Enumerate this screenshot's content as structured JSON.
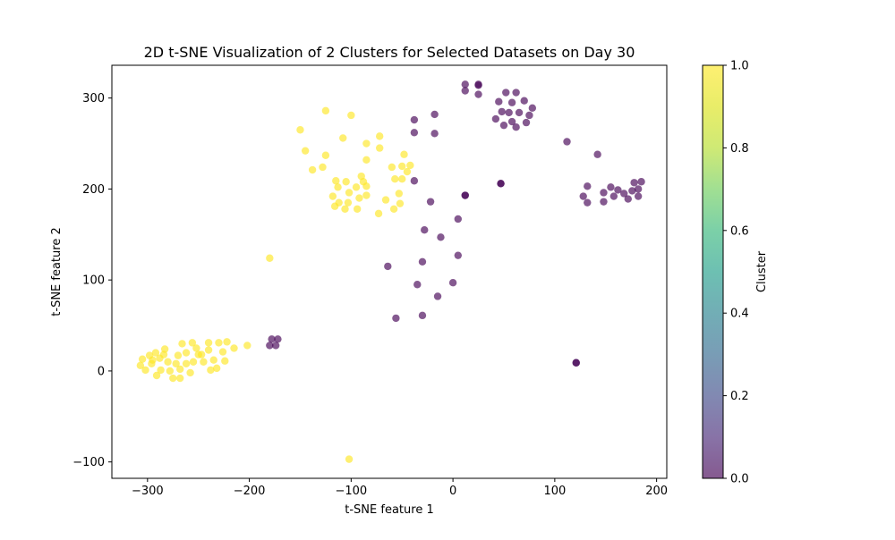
{
  "chart_data": {
    "type": "scatter",
    "title": "2D t-SNE Visualization of 2 Clusters for Selected Datasets on Day 30",
    "xlabel": "t-SNE feature 1",
    "ylabel": "t-SNE feature 2",
    "xlim": [
      -335,
      210
    ],
    "ylim": [
      -118,
      336
    ],
    "xticks": [
      -300,
      -200,
      -100,
      0,
      100,
      200
    ],
    "yticks": [
      -100,
      0,
      100,
      200,
      300
    ],
    "xtick_labels": [
      "−300",
      "−200",
      "−100",
      "0",
      "100",
      "200"
    ],
    "ytick_labels": [
      "−100",
      "0",
      "100",
      "200",
      "300"
    ],
    "grid": false,
    "colorbar": {
      "label": "Cluster",
      "range": [
        0,
        1
      ],
      "ticks": [
        0,
        0.2,
        0.4,
        0.6,
        0.8,
        1
      ],
      "tick_labels": [
        "0.0",
        "0.2",
        "0.4",
        "0.6",
        "0.8",
        "1.0"
      ],
      "colormap": "viridis",
      "alpha": 0.65
    },
    "series": [
      {
        "cluster": 0,
        "color": "#440154",
        "points": [
          [
            12,
            315
          ],
          [
            12,
            308
          ],
          [
            25,
            315
          ],
          [
            25,
            304
          ],
          [
            25,
            314
          ],
          [
            45,
            296
          ],
          [
            52,
            306
          ],
          [
            62,
            306
          ],
          [
            70,
            297
          ],
          [
            78,
            289
          ],
          [
            48,
            285
          ],
          [
            55,
            284
          ],
          [
            58,
            295
          ],
          [
            65,
            284
          ],
          [
            75,
            281
          ],
          [
            42,
            277
          ],
          [
            58,
            274
          ],
          [
            72,
            273
          ],
          [
            50,
            270
          ],
          [
            62,
            268
          ],
          [
            -38,
            276
          ],
          [
            -38,
            262
          ],
          [
            -18,
            282
          ],
          [
            -18,
            261
          ],
          [
            -38,
            209
          ],
          [
            -22,
            186
          ],
          [
            12,
            193
          ],
          [
            12,
            193
          ],
          [
            47,
            206
          ],
          [
            47,
            206
          ],
          [
            112,
            252
          ],
          [
            142,
            238
          ],
          [
            132,
            203
          ],
          [
            128,
            192
          ],
          [
            132,
            185
          ],
          [
            148,
            196
          ],
          [
            155,
            202
          ],
          [
            158,
            192
          ],
          [
            162,
            199
          ],
          [
            148,
            186
          ],
          [
            168,
            195
          ],
          [
            172,
            189
          ],
          [
            176,
            198
          ],
          [
            178,
            207
          ],
          [
            182,
            192
          ],
          [
            182,
            200
          ],
          [
            185,
            208
          ],
          [
            -28,
            155
          ],
          [
            -12,
            147
          ],
          [
            5,
            167
          ],
          [
            -64,
            115
          ],
          [
            -30,
            120
          ],
          [
            -35,
            95
          ],
          [
            5,
            127
          ],
          [
            0,
            97
          ],
          [
            -15,
            82
          ],
          [
            -56,
            58
          ],
          [
            -30,
            61
          ],
          [
            121,
            9
          ],
          [
            121,
            9
          ],
          [
            -178,
            35
          ],
          [
            -172,
            35
          ],
          [
            -180,
            28
          ],
          [
            -174,
            28
          ]
        ]
      },
      {
        "cluster": 1,
        "color": "#fde725",
        "points": [
          [
            -125,
            286
          ],
          [
            -100,
            281
          ],
          [
            -150,
            265
          ],
          [
            -145,
            242
          ],
          [
            -108,
            256
          ],
          [
            -138,
            221
          ],
          [
            -125,
            237
          ],
          [
            -128,
            224
          ],
          [
            -72,
            258
          ],
          [
            -72,
            245
          ],
          [
            -85,
            250
          ],
          [
            -85,
            232
          ],
          [
            -48,
            238
          ],
          [
            -42,
            226
          ],
          [
            -50,
            225
          ],
          [
            -45,
            219
          ],
          [
            -50,
            211
          ],
          [
            -57,
            211
          ],
          [
            -60,
            224
          ],
          [
            -115,
            209
          ],
          [
            -105,
            208
          ],
          [
            -90,
            214
          ],
          [
            -88,
            208
          ],
          [
            -85,
            203
          ],
          [
            -95,
            202
          ],
          [
            -118,
            192
          ],
          [
            -113,
            202
          ],
          [
            -102,
            196
          ],
          [
            -92,
            190
          ],
          [
            -85,
            193
          ],
          [
            -112,
            185
          ],
          [
            -103,
            185
          ],
          [
            -116,
            181
          ],
          [
            -106,
            178
          ],
          [
            -94,
            178
          ],
          [
            -66,
            188
          ],
          [
            -53,
            195
          ],
          [
            -52,
            184
          ],
          [
            -58,
            178
          ],
          [
            -73,
            173
          ],
          [
            -180,
            124
          ],
          [
            -102,
            -97
          ],
          [
            -305,
            13
          ],
          [
            -307,
            6
          ],
          [
            -298,
            17
          ],
          [
            -302,
            1
          ],
          [
            -296,
            8
          ],
          [
            -291,
            -5
          ],
          [
            -292,
            20
          ],
          [
            -288,
            14
          ],
          [
            -287,
            1
          ],
          [
            -283,
            24
          ],
          [
            -280,
            10
          ],
          [
            -278,
            0
          ],
          [
            -275,
            -8
          ],
          [
            -272,
            8
          ],
          [
            -268,
            -8
          ],
          [
            -270,
            17
          ],
          [
            -266,
            30
          ],
          [
            -262,
            20
          ],
          [
            -262,
            8
          ],
          [
            -258,
            -2
          ],
          [
            -256,
            31
          ],
          [
            -255,
            10
          ],
          [
            -252,
            25
          ],
          [
            -247,
            18
          ],
          [
            -245,
            10
          ],
          [
            -240,
            31
          ],
          [
            -240,
            23
          ],
          [
            -238,
            1
          ],
          [
            -235,
            12
          ],
          [
            -232,
            3
          ],
          [
            -230,
            31
          ],
          [
            -226,
            21
          ],
          [
            -224,
            11
          ],
          [
            -222,
            32
          ],
          [
            -215,
            25
          ],
          [
            -202,
            28
          ],
          [
            -295,
            12
          ],
          [
            -284,
            18
          ],
          [
            -268,
            2
          ],
          [
            -250,
            18
          ]
        ]
      }
    ]
  }
}
